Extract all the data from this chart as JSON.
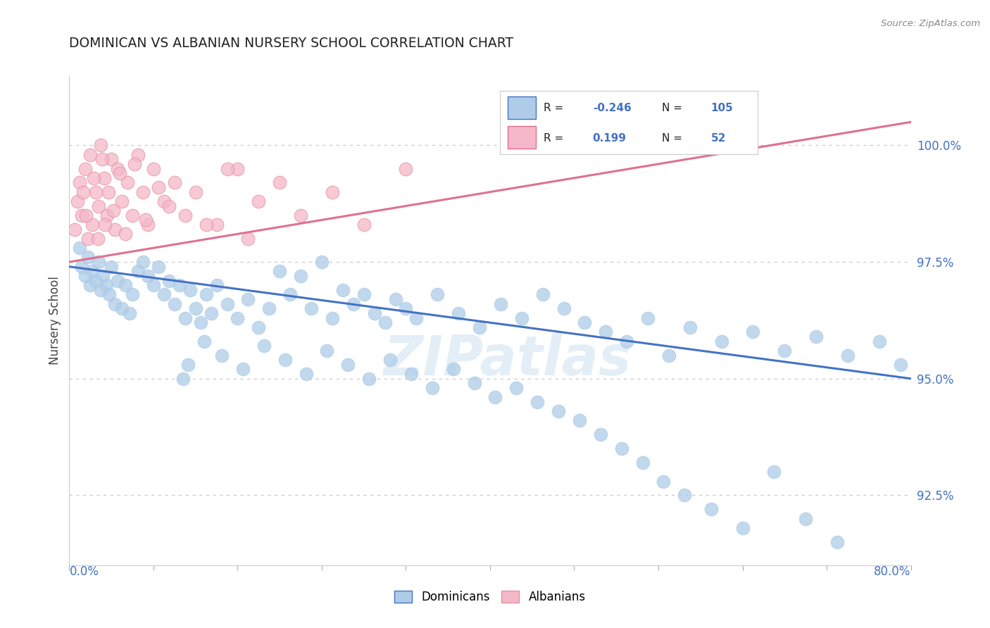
{
  "title": "DOMINICAN VS ALBANIAN NURSERY SCHOOL CORRELATION CHART",
  "source": "Source: ZipAtlas.com",
  "ylabel": "Nursery School",
  "xlim": [
    0.0,
    80.0
  ],
  "ylim": [
    91.0,
    101.5
  ],
  "yticks": [
    92.5,
    95.0,
    97.5,
    100.0
  ],
  "ytick_labels": [
    "92.5%",
    "95.0%",
    "97.5%",
    "100.0%"
  ],
  "blue_color": "#aecce8",
  "blue_edge_color": "#aecce8",
  "blue_line_color": "#4472c4",
  "pink_color": "#f4b8c8",
  "pink_edge_color": "#e8909f",
  "pink_line_color": "#e07090",
  "title_color": "#222222",
  "axis_label_color": "#4472c4",
  "legend_R1": "-0.246",
  "legend_N1": "105",
  "legend_R2": "0.199",
  "legend_N2": "52",
  "watermark_text": "ZIPatlas",
  "blue_line_x": [
    0,
    80
  ],
  "blue_line_y": [
    97.4,
    95.0
  ],
  "pink_line_x": [
    0,
    80
  ],
  "pink_line_y": [
    97.5,
    100.5
  ],
  "blue_scatter_x": [
    1.0,
    1.2,
    1.5,
    1.8,
    2.0,
    2.2,
    2.5,
    2.8,
    3.0,
    3.2,
    3.5,
    3.8,
    4.0,
    4.3,
    4.6,
    5.0,
    5.3,
    5.7,
    6.0,
    6.5,
    7.0,
    7.5,
    8.0,
    8.5,
    9.0,
    9.5,
    10.0,
    10.5,
    11.0,
    11.5,
    12.0,
    12.5,
    13.0,
    13.5,
    14.0,
    15.0,
    16.0,
    17.0,
    18.0,
    19.0,
    20.0,
    21.0,
    22.0,
    23.0,
    24.0,
    25.0,
    26.0,
    27.0,
    28.0,
    29.0,
    30.0,
    31.0,
    32.0,
    33.0,
    35.0,
    37.0,
    39.0,
    41.0,
    43.0,
    45.0,
    47.0,
    49.0,
    51.0,
    53.0,
    55.0,
    57.0,
    59.0,
    62.0,
    65.0,
    68.0,
    71.0,
    74.0,
    77.0,
    79.0,
    10.8,
    11.3,
    12.8,
    14.5,
    16.5,
    18.5,
    20.5,
    22.5,
    24.5,
    26.5,
    28.5,
    30.5,
    32.5,
    34.5,
    36.5,
    38.5,
    40.5,
    42.5,
    44.5,
    46.5,
    48.5,
    50.5,
    52.5,
    54.5,
    56.5,
    58.5,
    61.0,
    64.0,
    67.0,
    70.0,
    73.0
  ],
  "blue_scatter_y": [
    97.8,
    97.4,
    97.2,
    97.6,
    97.0,
    97.3,
    97.1,
    97.5,
    96.9,
    97.2,
    97.0,
    96.8,
    97.4,
    96.6,
    97.1,
    96.5,
    97.0,
    96.4,
    96.8,
    97.3,
    97.5,
    97.2,
    97.0,
    97.4,
    96.8,
    97.1,
    96.6,
    97.0,
    96.3,
    96.9,
    96.5,
    96.2,
    96.8,
    96.4,
    97.0,
    96.6,
    96.3,
    96.7,
    96.1,
    96.5,
    97.3,
    96.8,
    97.2,
    96.5,
    97.5,
    96.3,
    96.9,
    96.6,
    96.8,
    96.4,
    96.2,
    96.7,
    96.5,
    96.3,
    96.8,
    96.4,
    96.1,
    96.6,
    96.3,
    96.8,
    96.5,
    96.2,
    96.0,
    95.8,
    96.3,
    95.5,
    96.1,
    95.8,
    96.0,
    95.6,
    95.9,
    95.5,
    95.8,
    95.3,
    95.0,
    95.3,
    95.8,
    95.5,
    95.2,
    95.7,
    95.4,
    95.1,
    95.6,
    95.3,
    95.0,
    95.4,
    95.1,
    94.8,
    95.2,
    94.9,
    94.6,
    94.8,
    94.5,
    94.3,
    94.1,
    93.8,
    93.5,
    93.2,
    92.8,
    92.5,
    92.2,
    91.8,
    93.0,
    92.0,
    91.5
  ],
  "pink_scatter_x": [
    0.5,
    0.8,
    1.0,
    1.2,
    1.5,
    1.8,
    2.0,
    2.2,
    2.5,
    2.8,
    3.0,
    3.3,
    3.6,
    4.0,
    4.3,
    4.6,
    5.0,
    5.5,
    6.0,
    6.5,
    7.0,
    7.5,
    8.0,
    9.0,
    10.0,
    11.0,
    12.0,
    14.0,
    16.0,
    18.0,
    20.0,
    22.0,
    25.0,
    28.0,
    32.0,
    1.3,
    1.6,
    2.3,
    2.7,
    3.1,
    3.4,
    3.7,
    4.2,
    4.8,
    5.3,
    6.2,
    7.3,
    8.5,
    9.5,
    13.0,
    15.0,
    17.0
  ],
  "pink_scatter_y": [
    98.2,
    98.8,
    99.2,
    98.5,
    99.5,
    98.0,
    99.8,
    98.3,
    99.0,
    98.7,
    100.0,
    99.3,
    98.5,
    99.7,
    98.2,
    99.5,
    98.8,
    99.2,
    98.5,
    99.8,
    99.0,
    98.3,
    99.5,
    98.8,
    99.2,
    98.5,
    99.0,
    98.3,
    99.5,
    98.8,
    99.2,
    98.5,
    99.0,
    98.3,
    99.5,
    99.0,
    98.5,
    99.3,
    98.0,
    99.7,
    98.3,
    99.0,
    98.6,
    99.4,
    98.1,
    99.6,
    98.4,
    99.1,
    98.7,
    98.3,
    99.5,
    98.0
  ]
}
